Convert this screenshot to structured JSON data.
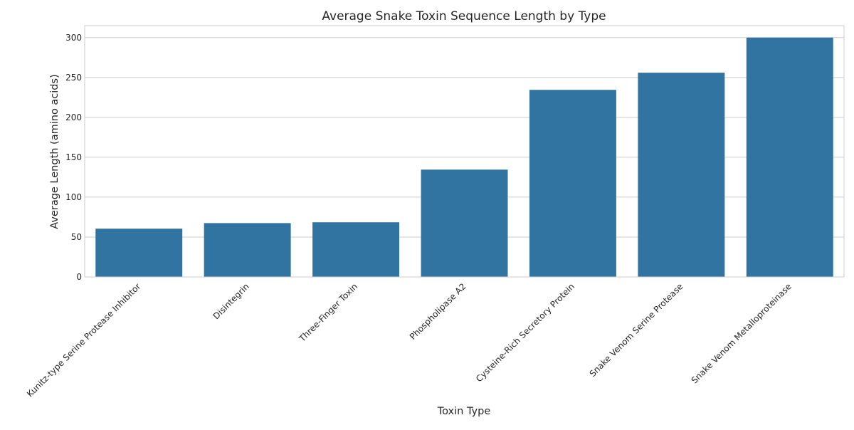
{
  "chart_data": {
    "type": "bar",
    "title": "Average Snake Toxin Sequence Length by Type",
    "xlabel": "Toxin Type",
    "ylabel": "Average Length (amino acids)",
    "categories": [
      "Kunitz-type Serine Protease Inhibitor",
      "Disintegrin",
      "Three-Finger Toxin",
      "Phospholipase A2",
      "Cysteine-Rich Secretory Protein",
      "Snake Venom Serine Protease",
      "Snake Venom Metalloproteinase"
    ],
    "values": [
      60.5,
      67.5,
      68.5,
      134.5,
      234.5,
      256,
      300
    ],
    "ylim": [
      0,
      315
    ],
    "yticks": [
      0,
      50,
      100,
      150,
      200,
      250,
      300
    ],
    "grid": true,
    "bar_color": "#3274a1"
  }
}
